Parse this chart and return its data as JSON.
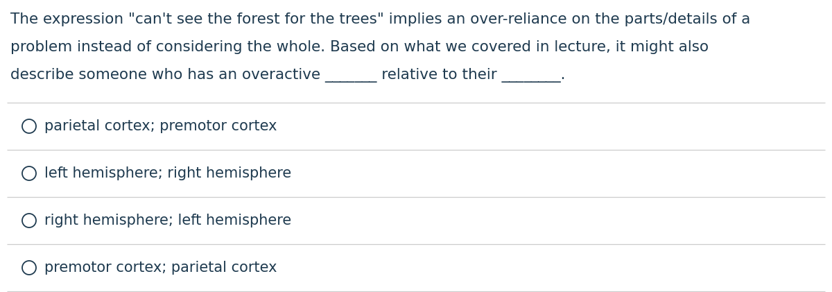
{
  "background_color": "#ffffff",
  "text_color": "#1e3a4f",
  "question_text_lines": [
    "The expression \"can't see the forest for the trees\" implies an over-reliance on the parts/details of a",
    "problem instead of considering the whole. Based on what we covered in lecture, it might also",
    "describe someone who has an overactive _______ relative to their ________."
  ],
  "options": [
    "parietal cortex; premotor cortex",
    "left hemisphere; right hemisphere",
    "right hemisphere; left hemisphere",
    "premotor cortex; parietal cortex"
  ],
  "font_size_question": 15.5,
  "font_size_options": 15.0,
  "divider_color": "#cccccc",
  "fig_width": 12.0,
  "fig_height": 4.21
}
